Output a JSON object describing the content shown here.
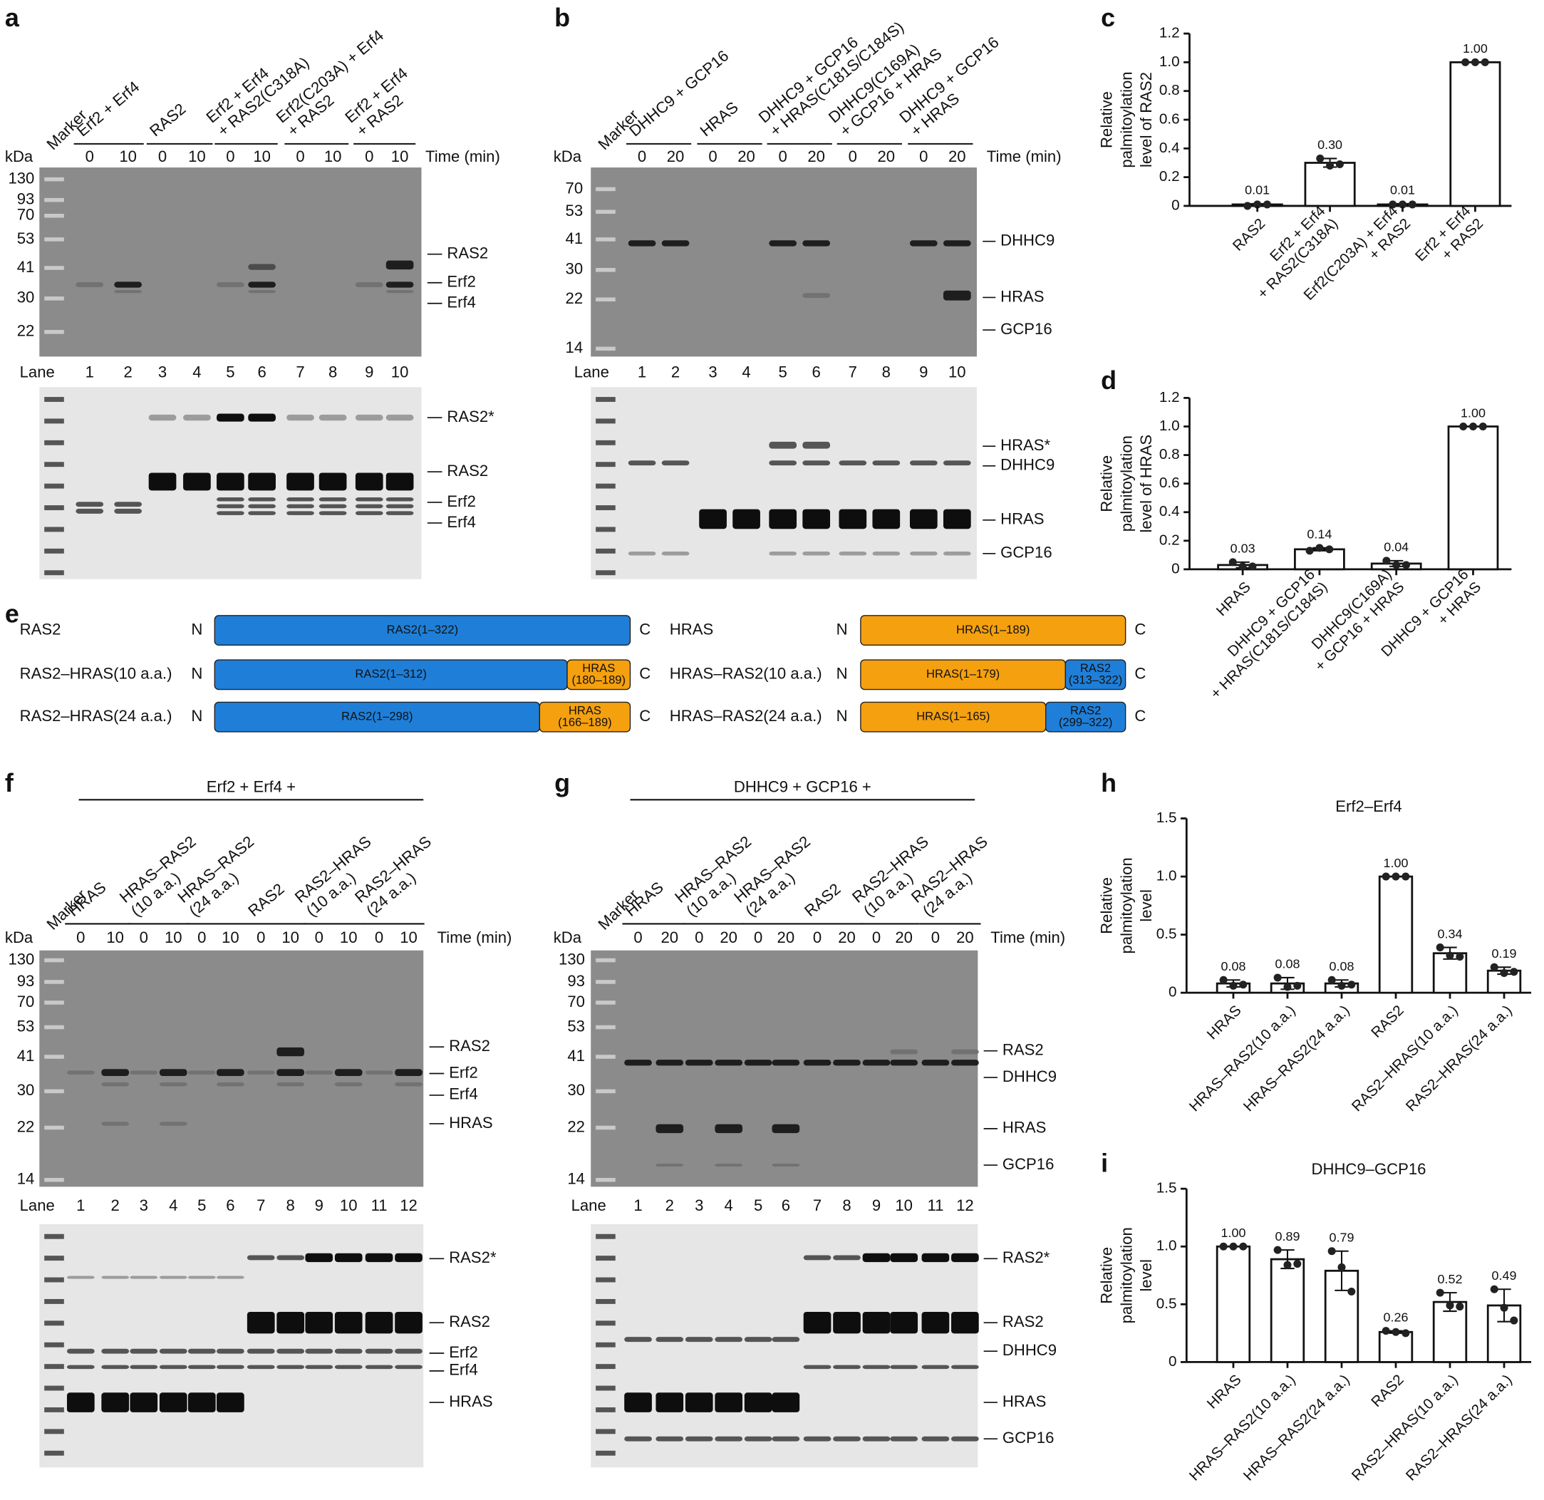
{
  "gels": [
    {
      "label": "a",
      "marker": "Marker",
      "groups": [
        [
          "Erf2 + Erf4"
        ],
        [
          "RAS2"
        ],
        [
          "Erf2 + Erf4",
          "+ RAS2(C318A)"
        ],
        [
          "Erf2(C203A) + Erf4",
          "+ RAS2"
        ],
        [
          "Erf2 + Erf4",
          "+ RAS2"
        ]
      ],
      "kda": "kDa",
      "markers": [
        130,
        93,
        70,
        53,
        41,
        30,
        22
      ],
      "times": [
        0,
        10,
        0,
        10,
        0,
        10,
        0,
        10,
        0,
        10
      ],
      "time_label": "Time (min)",
      "lane_label": "Lane",
      "lanes": [
        1,
        2,
        3,
        4,
        5,
        6,
        7,
        8,
        9,
        10
      ],
      "top_bands": [
        "RAS2",
        "Erf2",
        "Erf4"
      ],
      "bottom_bands": [
        "RAS2*",
        "RAS2",
        "Erf2",
        "Erf4"
      ]
    },
    {
      "label": "b",
      "marker": "Marker",
      "groups": [
        [
          "DHHC9 + GCP16"
        ],
        [
          "HRAS"
        ],
        [
          "DHHC9 + GCP16",
          "+ HRAS(C181S/C184S)"
        ],
        [
          "DHHC9(C169A)",
          "+ GCP16 + HRAS"
        ],
        [
          "DHHC9 + GCP16",
          "+ HRAS"
        ]
      ],
      "kda": "kDa",
      "markers": [
        70,
        53,
        41,
        30,
        22,
        14
      ],
      "times": [
        0,
        20,
        0,
        20,
        0,
        20,
        0,
        20,
        0,
        20
      ],
      "time_label": "Time (min)",
      "lane_label": "Lane",
      "lanes": [
        1,
        2,
        3,
        4,
        5,
        6,
        7,
        8,
        9,
        10
      ],
      "top_bands": [
        "DHHC9",
        "HRAS",
        "GCP16"
      ],
      "bottom_bands": [
        "HRAS*",
        "DHHC9",
        "HRAS",
        "GCP16"
      ]
    },
    {
      "label": "f",
      "header": "Erf2 + Erf4 +",
      "marker": "Marker",
      "groups": [
        [
          "HRAS"
        ],
        [
          "HRAS–RAS2",
          "(10 a.a.)"
        ],
        [
          "HRAS–RAS2",
          "(24 a.a.)"
        ],
        [
          "RAS2"
        ],
        [
          "RAS2–HRAS",
          "(10 a.a.)"
        ],
        [
          "RAS2–HRAS",
          "(24 a.a.)"
        ]
      ],
      "kda": "kDa",
      "markers": [
        130,
        93,
        70,
        53,
        41,
        30,
        22,
        14
      ],
      "times": [
        0,
        10,
        0,
        10,
        0,
        10,
        0,
        10,
        0,
        10,
        0,
        10
      ],
      "time_label": "Time (min)",
      "lane_label": "Lane",
      "lanes": [
        1,
        2,
        3,
        4,
        5,
        6,
        7,
        8,
        9,
        10,
        11,
        12
      ],
      "top_bands": [
        "RAS2",
        "Erf2",
        "Erf4",
        "HRAS"
      ],
      "bottom_bands": [
        "RAS2*",
        "RAS2",
        "Erf2",
        "Erf4",
        "HRAS"
      ]
    },
    {
      "label": "g",
      "header": "DHHC9 + GCP16 +",
      "marker": "Marker",
      "groups": [
        [
          "HRAS"
        ],
        [
          "HRAS–RAS2",
          "(10 a.a.)"
        ],
        [
          "HRAS–RAS2",
          "(24 a.a.)"
        ],
        [
          "RAS2"
        ],
        [
          "RAS2–HRAS",
          "(10 a.a.)"
        ],
        [
          "RAS2–HRAS",
          "(24 a.a.)"
        ]
      ],
      "kda": "kDa",
      "markers": [
        130,
        93,
        70,
        53,
        41,
        30,
        22,
        14
      ],
      "times": [
        0,
        20,
        0,
        20,
        0,
        20,
        0,
        20,
        0,
        20,
        0,
        20
      ],
      "time_label": "Time (min)",
      "lane_label": "Lane",
      "lanes": [
        1,
        2,
        3,
        4,
        5,
        6,
        7,
        8,
        9,
        10,
        11,
        12
      ],
      "top_bands": [
        "RAS2",
        "DHHC9",
        "HRAS",
        "GCP16"
      ],
      "bottom_bands": [
        "RAS2*",
        "RAS2",
        "DHHC9",
        "HRAS",
        "GCP16"
      ]
    }
  ],
  "constructs": {
    "label": "e",
    "left": [
      {
        "name": "RAS2",
        "n": "N",
        "c": "C",
        "segments": [
          {
            "lines": [
              "RAS2(1–322)"
            ],
            "color": "#1f7fd8"
          }
        ]
      },
      {
        "name": "RAS2–HRAS(10 a.a.)",
        "n": "N",
        "c": "C",
        "segments": [
          {
            "lines": [
              "RAS2(1–312)"
            ],
            "color": "#1f7fd8"
          },
          {
            "lines": [
              "HRAS",
              "(180–189)"
            ],
            "color": "#f5a00f"
          }
        ]
      },
      {
        "name": "RAS2–HRAS(24 a.a.)",
        "n": "N",
        "c": "C",
        "segments": [
          {
            "lines": [
              "RAS2(1–298)"
            ],
            "color": "#1f7fd8"
          },
          {
            "lines": [
              "HRAS",
              "(166–189)"
            ],
            "color": "#f5a00f"
          }
        ]
      }
    ],
    "right": [
      {
        "name": "HRAS",
        "n": "N",
        "c": "C",
        "segments": [
          {
            "lines": [
              "HRAS(1–189)"
            ],
            "color": "#f5a00f"
          }
        ]
      },
      {
        "name": "HRAS–RAS2(10 a.a.)",
        "n": "N",
        "c": "C",
        "segments": [
          {
            "lines": [
              "HRAS(1–179)"
            ],
            "color": "#f5a00f"
          },
          {
            "lines": [
              "RAS2",
              "(313–322)"
            ],
            "color": "#1f7fd8"
          }
        ]
      },
      {
        "name": "HRAS–RAS2(24 a.a.)",
        "n": "N",
        "c": "C",
        "segments": [
          {
            "lines": [
              "HRAS(1–165)"
            ],
            "color": "#f5a00f"
          },
          {
            "lines": [
              "RAS2",
              "(299–322)"
            ],
            "color": "#1f7fd8"
          }
        ]
      }
    ]
  },
  "chart_data": [
    {
      "type": "bar",
      "label": "c",
      "ylabel": [
        "Relative",
        "palmitoylation",
        "level of RAS2"
      ],
      "categories": [
        [
          "RAS2"
        ],
        [
          "Erf2 + Erf4",
          "+ RAS2(C318A)"
        ],
        [
          "Erf2(C203A) + Erf4",
          "+ RAS2"
        ],
        [
          "Erf2 + Erf4",
          "+ RAS2"
        ]
      ],
      "values": [
        0.01,
        0.3,
        0.01,
        1
      ],
      "value_labels": [
        "0.01",
        "0.30",
        "0.01",
        "1.00"
      ],
      "errors": [
        0.005,
        0.03,
        0.005,
        0
      ],
      "points": [
        [
          0,
          0.01,
          0.01
        ],
        [
          0.33,
          0.28,
          0.29
        ],
        [
          0.01,
          0.01,
          0.01
        ],
        [
          1,
          1,
          1
        ]
      ],
      "ylim": [
        0,
        1.2
      ],
      "yticks": [
        0,
        0.2,
        0.4,
        0.6,
        0.8,
        {
          "value": 1,
          "label": "1.0"
        },
        1.2
      ],
      "color": "#ffffff"
    },
    {
      "type": "bar",
      "label": "d",
      "ylabel": [
        "Relative",
        "palmitoylation",
        "level of HRAS"
      ],
      "categories": [
        [
          "HRAS"
        ],
        [
          "DHHC9 + GCP16",
          "+ HRAS(C181S/C184S)"
        ],
        [
          "DHHC9(C169A)",
          "+ GCP16 + HRAS"
        ],
        [
          "DHHC9 + GCP16",
          "+ HRAS"
        ]
      ],
      "values": [
        0.03,
        0.14,
        0.04,
        1
      ],
      "value_labels": [
        "0.03",
        "0.14",
        "0.04",
        "1.00"
      ],
      "errors": [
        0.02,
        0.01,
        0.02,
        0
      ],
      "points": [
        [
          0.05,
          0.02,
          0.02
        ],
        [
          0.13,
          0.15,
          0.14
        ],
        [
          0.06,
          0.03,
          0.03
        ],
        [
          1,
          1,
          1
        ]
      ],
      "ylim": [
        0,
        1.2
      ],
      "yticks": [
        0,
        0.2,
        0.4,
        0.6,
        0.8,
        {
          "value": 1,
          "label": "1.0"
        },
        1.2
      ],
      "color": "#ffffff"
    },
    {
      "type": "bar",
      "label": "h",
      "title": "Erf2–Erf4",
      "ylabel": [
        "Relative",
        "palmitoylation",
        "level"
      ],
      "categories": [
        [
          "HRAS"
        ],
        [
          "HRAS–RAS2(10 a.a.)"
        ],
        [
          "HRAS–RAS2(24 a.a.)"
        ],
        [
          "RAS2"
        ],
        [
          "RAS2–HRAS(10 a.a.)"
        ],
        [
          "RAS2–HRAS(24 a.a.)"
        ]
      ],
      "values": [
        0.08,
        0.08,
        0.08,
        1,
        0.34,
        0.19
      ],
      "value_labels": [
        "0.08",
        "0.08",
        "0.08",
        "1.00",
        "0.34",
        "0.19"
      ],
      "errors": [
        0.03,
        0.05,
        0.03,
        0,
        0.05,
        0.03
      ],
      "points": [
        [
          0.11,
          0.06,
          0.07
        ],
        [
          0.13,
          0.05,
          0.06
        ],
        [
          0.11,
          0.06,
          0.07
        ],
        [
          1,
          1,
          1
        ],
        [
          0.39,
          0.32,
          0.31
        ],
        [
          0.22,
          0.17,
          0.18
        ]
      ],
      "ylim": [
        0,
        1.5
      ],
      "yticks": [
        0,
        0.5,
        {
          "value": 1,
          "label": "1.0"
        },
        1.5
      ],
      "color": "#ffffff"
    },
    {
      "type": "bar",
      "label": "i",
      "title": "DHHC9–GCP16",
      "ylabel": [
        "Relative",
        "palmitoylation",
        "level"
      ],
      "categories": [
        [
          "HRAS"
        ],
        [
          "HRAS–RAS2(10 a.a.)"
        ],
        [
          "HRAS–RAS2(24 a.a.)"
        ],
        [
          "RAS2"
        ],
        [
          "RAS2–HRAS(10 a.a.)"
        ],
        [
          "RAS2–HRAS(24 a.a.)"
        ]
      ],
      "values": [
        1,
        0.89,
        0.79,
        0.26,
        0.52,
        0.49
      ],
      "value_labels": [
        "1.00",
        "0.89",
        "0.79",
        "0.26",
        "0.52",
        "0.49"
      ],
      "errors": [
        0,
        0.08,
        0.17,
        0.01,
        0.08,
        0.14
      ],
      "points": [
        [
          1,
          1,
          1
        ],
        [
          0.97,
          0.84,
          0.85
        ],
        [
          0.96,
          0.82,
          0.61
        ],
        [
          0.27,
          0.26,
          0.25
        ],
        [
          0.6,
          0.49,
          0.48
        ],
        [
          0.63,
          0.47,
          0.36
        ]
      ],
      "ylim": [
        0,
        1.5
      ],
      "yticks": [
        0,
        0.5,
        {
          "value": 1,
          "label": "1.0"
        },
        1.5
      ],
      "color": "#ffffff"
    }
  ]
}
